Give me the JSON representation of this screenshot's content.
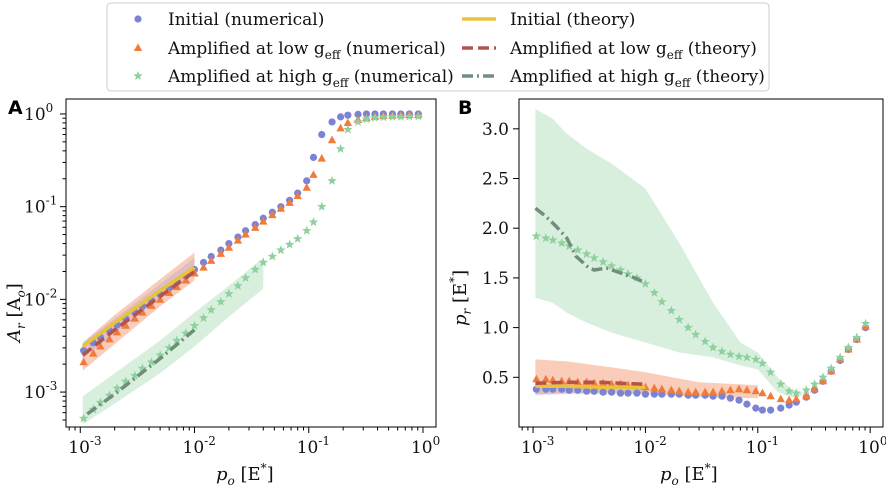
{
  "chart_data": [
    {
      "panel": "A",
      "type": "scatter",
      "xscale": "log",
      "yscale": "log",
      "xlim": [
        0.00075,
        1.3
      ],
      "ylim": [
        0.00042,
        1.45
      ],
      "xlabel": "p_o [E*]",
      "ylabel": "A_r [A_o]",
      "xticks": [
        0.001,
        0.01,
        0.1,
        1
      ],
      "xtick_labels": [
        "10^-3",
        "10^-2",
        "10^-1",
        "10^0"
      ],
      "yticks": [
        0.001,
        0.01,
        0.1,
        1
      ],
      "ytick_labels": [
        "10^-3",
        "10^-2",
        "10^-1",
        "10^0"
      ],
      "bands": [
        {
          "series": "Amplified at low g_eff",
          "color": "#f07b4a",
          "opacity": 0.38,
          "x": [
            0.00105,
            0.002,
            0.005,
            0.01
          ],
          "upper": [
            0.0034,
            0.0068,
            0.0165,
            0.032
          ],
          "lower": [
            0.0017,
            0.0033,
            0.0084,
            0.016
          ]
        },
        {
          "series": "Amplified at high g_eff",
          "color": "#8fd19e",
          "opacity": 0.35,
          "x": [
            0.00105,
            0.002,
            0.005,
            0.01,
            0.02,
            0.04
          ],
          "upper": [
            0.0009,
            0.0016,
            0.0036,
            0.0072,
            0.014,
            0.028
          ],
          "lower": [
            0.00045,
            0.00075,
            0.0016,
            0.0031,
            0.0065,
            0.013
          ]
        },
        {
          "series": "Initial",
          "color": "#8b93d8",
          "opacity": 0.25,
          "x": [
            0.00105,
            0.01
          ],
          "upper": [
            0.0034,
            0.028
          ],
          "lower": [
            0.0023,
            0.02
          ]
        }
      ],
      "series": [
        {
          "name": "Initial (numerical)",
          "marker": "circle",
          "color": "#7b84d4",
          "x": [
            0.00107,
            0.0013,
            0.0015,
            0.0018,
            0.0021,
            0.0025,
            0.003,
            0.0035,
            0.0042,
            0.005,
            0.006,
            0.007,
            0.0084,
            0.01,
            0.012,
            0.014,
            0.017,
            0.02,
            0.024,
            0.028,
            0.034,
            0.04,
            0.048,
            0.057,
            0.068,
            0.08,
            0.096,
            0.11,
            0.13,
            0.16,
            0.19,
            0.22,
            0.27,
            0.32,
            0.38,
            0.45,
            0.54,
            0.64,
            0.76,
            0.91
          ],
          "y": [
            0.0028,
            0.0034,
            0.0039,
            0.0046,
            0.0053,
            0.0062,
            0.0073,
            0.0084,
            0.0097,
            0.0113,
            0.0132,
            0.0152,
            0.0178,
            0.021,
            0.025,
            0.029,
            0.034,
            0.04,
            0.047,
            0.055,
            0.064,
            0.075,
            0.087,
            0.1,
            0.117,
            0.14,
            0.19,
            0.34,
            0.6,
            0.82,
            0.93,
            0.97,
            0.99,
            1.0,
            1.0,
            1.0,
            1.0,
            1.0,
            1.0,
            1.0
          ]
        },
        {
          "name": "Amplified at low g_eff (numerical)",
          "marker": "triangle",
          "color": "#f07b3a",
          "x": [
            0.00107,
            0.0013,
            0.0015,
            0.0018,
            0.0021,
            0.0025,
            0.003,
            0.0035,
            0.0042,
            0.005,
            0.006,
            0.007,
            0.0084,
            0.01,
            0.012,
            0.014,
            0.017,
            0.02,
            0.024,
            0.028,
            0.034,
            0.04,
            0.048,
            0.057,
            0.068,
            0.08,
            0.096,
            0.11,
            0.13,
            0.16,
            0.19,
            0.22,
            0.27,
            0.32,
            0.38,
            0.45,
            0.54,
            0.64,
            0.76,
            0.91
          ],
          "y": [
            0.0021,
            0.0026,
            0.0031,
            0.0037,
            0.0044,
            0.0052,
            0.0062,
            0.0072,
            0.0085,
            0.0099,
            0.0117,
            0.0136,
            0.016,
            0.019,
            0.022,
            0.026,
            0.031,
            0.036,
            0.043,
            0.05,
            0.059,
            0.069,
            0.081,
            0.095,
            0.11,
            0.13,
            0.16,
            0.22,
            0.33,
            0.52,
            0.7,
            0.8,
            0.86,
            0.9,
            0.93,
            0.95,
            0.96,
            0.97,
            0.97,
            0.97
          ]
        },
        {
          "name": "Amplified at high g_eff (numerical)",
          "marker": "star",
          "color": "#8fd19e",
          "x": [
            0.00107,
            0.0013,
            0.0015,
            0.0018,
            0.0021,
            0.0025,
            0.003,
            0.0035,
            0.0042,
            0.005,
            0.006,
            0.007,
            0.0084,
            0.01,
            0.012,
            0.014,
            0.017,
            0.02,
            0.024,
            0.028,
            0.034,
            0.04,
            0.048,
            0.057,
            0.068,
            0.08,
            0.096,
            0.11,
            0.13,
            0.16,
            0.19,
            0.22,
            0.27,
            0.32,
            0.38,
            0.45,
            0.54,
            0.64,
            0.76,
            0.91
          ],
          "y": [
            0.00052,
            0.00065,
            0.00077,
            0.00092,
            0.0011,
            0.0013,
            0.0015,
            0.0018,
            0.0021,
            0.0025,
            0.003,
            0.0036,
            0.0043,
            0.0052,
            0.0063,
            0.0077,
            0.0094,
            0.0115,
            0.014,
            0.017,
            0.021,
            0.025,
            0.029,
            0.034,
            0.039,
            0.045,
            0.055,
            0.068,
            0.1,
            0.19,
            0.42,
            0.68,
            0.82,
            0.88,
            0.91,
            0.92,
            0.93,
            0.93,
            0.94,
            0.94
          ]
        }
      ],
      "lines": [
        {
          "name": "Initial (theory)",
          "style": "solid",
          "color": "#e8c33a",
          "x": [
            0.00105,
            0.002,
            0.005,
            0.01
          ],
          "y": [
            0.0031,
            0.0056,
            0.0125,
            0.022
          ]
        },
        {
          "name": "Amplified at low g_eff (theory)",
          "style": "dashed",
          "color": "#b5524a",
          "x": [
            0.00105,
            0.002,
            0.005,
            0.01
          ],
          "y": [
            0.0025,
            0.0047,
            0.0108,
            0.02
          ]
        },
        {
          "name": "Amplified at high g_eff (theory)",
          "style": "dashdot",
          "color": "#6f8f7c",
          "x": [
            0.00115,
            0.002,
            0.005,
            0.01
          ],
          "y": [
            0.00058,
            0.00095,
            0.0023,
            0.0047
          ]
        }
      ]
    },
    {
      "panel": "B",
      "type": "scatter",
      "xscale": "log",
      "yscale": "linear",
      "xlim": [
        0.00075,
        1.3
      ],
      "ylim": [
        0.0,
        3.3
      ],
      "xlabel": "p_o [E*]",
      "ylabel": "p_r [E*]",
      "xticks": [
        0.001,
        0.01,
        0.1,
        1
      ],
      "xtick_labels": [
        "10^-3",
        "10^-2",
        "10^-1",
        "10^0"
      ],
      "yticks": [
        0.5,
        1.0,
        1.5,
        2.0,
        2.5,
        3.0
      ],
      "ytick_labels": [
        "0.5",
        "1.0",
        "1.5",
        "2.0",
        "2.5",
        "3.0"
      ],
      "bands": [
        {
          "series": "Amplified at high g_eff",
          "color": "#8fd19e",
          "opacity": 0.35,
          "x": [
            0.00105,
            0.0015,
            0.002,
            0.003,
            0.005,
            0.01,
            0.02,
            0.04,
            0.07,
            0.1,
            0.15,
            0.2,
            0.25
          ],
          "upper": [
            3.2,
            3.1,
            2.95,
            2.8,
            2.65,
            2.4,
            1.85,
            1.25,
            0.85,
            0.75,
            0.5,
            0.38,
            0.35
          ],
          "lower": [
            1.3,
            1.25,
            1.15,
            1.05,
            0.95,
            0.85,
            0.75,
            0.7,
            0.62,
            0.58,
            0.35,
            0.3,
            0.32
          ]
        },
        {
          "series": "Amplified at low g_eff",
          "color": "#f07b4a",
          "opacity": 0.38,
          "x": [
            0.00105,
            0.002,
            0.005,
            0.01,
            0.03,
            0.1
          ],
          "upper": [
            0.68,
            0.66,
            0.6,
            0.55,
            0.45,
            0.42
          ],
          "lower": [
            0.33,
            0.34,
            0.35,
            0.33,
            0.3,
            0.29
          ]
        },
        {
          "series": "Initial",
          "color": "#8b93d8",
          "opacity": 0.25,
          "x": [
            0.00105,
            0.002,
            0.005,
            0.01
          ],
          "upper": [
            0.43,
            0.43,
            0.42,
            0.42
          ],
          "lower": [
            0.32,
            0.33,
            0.33,
            0.33
          ]
        }
      ],
      "series": [
        {
          "name": "Initial (numerical)",
          "marker": "circle",
          "color": "#7b84d4",
          "x": [
            0.00107,
            0.0013,
            0.0015,
            0.0018,
            0.0021,
            0.0025,
            0.003,
            0.0035,
            0.0042,
            0.005,
            0.006,
            0.007,
            0.0084,
            0.01,
            0.012,
            0.014,
            0.017,
            0.02,
            0.024,
            0.028,
            0.034,
            0.04,
            0.048,
            0.057,
            0.068,
            0.08,
            0.096,
            0.11,
            0.13,
            0.16,
            0.19,
            0.22,
            0.27,
            0.32,
            0.38,
            0.45,
            0.54,
            0.64,
            0.76,
            0.91
          ],
          "y": [
            0.38,
            0.38,
            0.38,
            0.38,
            0.37,
            0.37,
            0.36,
            0.36,
            0.35,
            0.35,
            0.34,
            0.34,
            0.34,
            0.33,
            0.33,
            0.33,
            0.33,
            0.33,
            0.32,
            0.32,
            0.32,
            0.31,
            0.31,
            0.29,
            0.27,
            0.23,
            0.19,
            0.17,
            0.17,
            0.19,
            0.22,
            0.25,
            0.3,
            0.37,
            0.46,
            0.56,
            0.67,
            0.78,
            0.88,
            1.0
          ]
        },
        {
          "name": "Amplified at low g_eff (numerical)",
          "marker": "triangle",
          "color": "#f07b3a",
          "x": [
            0.00107,
            0.0013,
            0.0015,
            0.0018,
            0.0021,
            0.0025,
            0.003,
            0.0035,
            0.0042,
            0.005,
            0.006,
            0.007,
            0.0084,
            0.01,
            0.012,
            0.014,
            0.017,
            0.02,
            0.024,
            0.028,
            0.034,
            0.04,
            0.048,
            0.057,
            0.068,
            0.08,
            0.096,
            0.11,
            0.13,
            0.16,
            0.19,
            0.22,
            0.27,
            0.32,
            0.38,
            0.45,
            0.54,
            0.64,
            0.76,
            0.91
          ],
          "y": [
            0.48,
            0.48,
            0.47,
            0.46,
            0.46,
            0.45,
            0.45,
            0.44,
            0.44,
            0.43,
            0.43,
            0.42,
            0.41,
            0.4,
            0.39,
            0.38,
            0.37,
            0.36,
            0.35,
            0.35,
            0.35,
            0.35,
            0.36,
            0.37,
            0.38,
            0.37,
            0.36,
            0.34,
            0.31,
            0.28,
            0.27,
            0.28,
            0.31,
            0.38,
            0.46,
            0.56,
            0.68,
            0.78,
            0.88,
            1.01
          ]
        },
        {
          "name": "Amplified at high g_eff (numerical)",
          "marker": "star",
          "color": "#8fd19e",
          "x": [
            0.00107,
            0.0013,
            0.0015,
            0.0018,
            0.0021,
            0.0025,
            0.003,
            0.0035,
            0.0042,
            0.005,
            0.006,
            0.007,
            0.0084,
            0.01,
            0.012,
            0.014,
            0.017,
            0.02,
            0.024,
            0.028,
            0.034,
            0.04,
            0.048,
            0.057,
            0.068,
            0.08,
            0.096,
            0.11,
            0.13,
            0.16,
            0.19,
            0.22,
            0.27,
            0.32,
            0.38,
            0.45,
            0.54,
            0.64,
            0.76,
            0.91
          ],
          "y": [
            1.92,
            1.9,
            1.88,
            1.85,
            1.82,
            1.78,
            1.74,
            1.7,
            1.66,
            1.62,
            1.58,
            1.54,
            1.5,
            1.44,
            1.35,
            1.26,
            1.17,
            1.08,
            1.0,
            0.93,
            0.86,
            0.8,
            0.76,
            0.73,
            0.71,
            0.7,
            0.68,
            0.64,
            0.55,
            0.43,
            0.36,
            0.34,
            0.37,
            0.43,
            0.5,
            0.59,
            0.7,
            0.8,
            0.9,
            1.04
          ]
        }
      ],
      "lines": [
        {
          "name": "Initial (theory)",
          "style": "solid",
          "color": "#e8c33a",
          "x": [
            0.00105,
            0.002,
            0.004,
            0.006,
            0.01
          ],
          "y": [
            0.41,
            0.41,
            0.4,
            0.4,
            0.4
          ]
        },
        {
          "name": "Amplified at low g_eff (theory)",
          "style": "dashed",
          "color": "#b5524a",
          "x": [
            0.00105,
            0.002,
            0.004,
            0.006,
            0.01
          ],
          "y": [
            0.44,
            0.45,
            0.45,
            0.44,
            0.43
          ]
        },
        {
          "name": "Amplified at high g_eff (theory)",
          "style": "dashdot",
          "color": "#6f8f7c",
          "x": [
            0.00105,
            0.0013,
            0.0016,
            0.002,
            0.0024,
            0.003,
            0.0035,
            0.0045,
            0.006,
            0.008,
            0.01
          ],
          "y": [
            2.2,
            2.12,
            2.02,
            1.9,
            1.72,
            1.62,
            1.58,
            1.6,
            1.55,
            1.5,
            1.45
          ]
        }
      ]
    }
  ],
  "legend": {
    "entries": [
      {
        "key": "Initial (numerical)",
        "text": "Initial (numerical)",
        "marker": "circle",
        "color": "#7b84d4"
      },
      {
        "key": "Initial (theory)",
        "text": "Initial (theory)",
        "marker": "solid",
        "color": "#e8c33a"
      },
      {
        "key": "Amplified at low g_eff (numerical)",
        "text": "Amplified at low g",
        "sub": "eff",
        "tail": " (numerical)",
        "marker": "triangle",
        "color": "#f07b3a"
      },
      {
        "key": "Amplified at low g_eff (theory)",
        "text": "Amplified at low g",
        "sub": "eff",
        "tail": " (theory)",
        "marker": "dashed",
        "color": "#b5524a"
      },
      {
        "key": "Amplified at high g_eff (numerical)",
        "text": "Amplified at high g",
        "sub": "eff",
        "tail": " (numerical)",
        "marker": "star",
        "color": "#8fd19e"
      },
      {
        "key": "Amplified at high g_eff (theory)",
        "text": "Amplified at high g",
        "sub": "eff",
        "tail": " (theory)",
        "marker": "dashdot",
        "color": "#6f8f7c"
      }
    ]
  },
  "panel_labels": {
    "a": "A",
    "b": "B"
  },
  "axis_text": {
    "a_xlabel_main": "p",
    "a_xlabel_sub": "o",
    "a_xlabel_unit": " [E",
    "a_xlabel_star": "*",
    "a_xlabel_close": "]",
    "a_ylabel_main": "A",
    "a_ylabel_sub": "r",
    "a_ylabel_unit": " [A",
    "a_ylabel_usub": "o",
    "a_ylabel_close": "]",
    "b_xlabel_main": "p",
    "b_xlabel_sub": "o",
    "b_xlabel_unit": " [E",
    "b_xlabel_star": "*",
    "b_xlabel_close": "]",
    "b_ylabel_main": "p",
    "b_ylabel_sub": "r",
    "b_ylabel_unit": " [E",
    "b_ylabel_star": "*",
    "b_ylabel_close": "]"
  }
}
